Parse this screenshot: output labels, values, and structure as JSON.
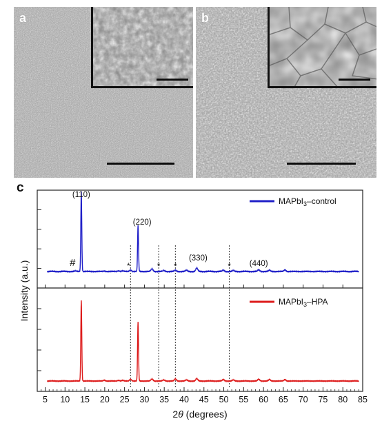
{
  "panels": {
    "a": {
      "letter": "a"
    },
    "b": {
      "letter": "b"
    },
    "c": {
      "letter": "c"
    }
  },
  "colors": {
    "control": "#1f1fc8",
    "hpa": "#dd1a1a"
  },
  "chart_data": {
    "type": "line",
    "xlabel_prefix": "2",
    "xlabel_theta": "θ",
    "xlabel_suffix": " (degrees)",
    "ylabel": "Intensity (a.u.)",
    "xlim": [
      3,
      85
    ],
    "x_ticks": [
      5,
      10,
      15,
      20,
      25,
      30,
      35,
      40,
      45,
      50,
      55,
      60,
      65,
      70,
      75,
      80,
      85
    ],
    "grid": false,
    "legend_position": "top-right",
    "series": [
      {
        "name": "MAPbI3–control",
        "legend_parts": [
          "MAPbI",
          "3",
          "–control"
        ],
        "color": "#1f1fc8",
        "baseline": 1.0,
        "peaks": [
          {
            "x": 12.6,
            "h": 0.06
          },
          {
            "x": 14.1,
            "h": 10.4
          },
          {
            "x": 19.9,
            "h": 0.05
          },
          {
            "x": 23.5,
            "h": 0.08
          },
          {
            "x": 24.5,
            "h": 0.08
          },
          {
            "x": 26.5,
            "h": 0.18
          },
          {
            "x": 28.4,
            "h": 6.0
          },
          {
            "x": 31.9,
            "h": 0.35
          },
          {
            "x": 34.9,
            "h": 0.12
          },
          {
            "x": 37.8,
            "h": 0.15
          },
          {
            "x": 40.6,
            "h": 0.15
          },
          {
            "x": 43.2,
            "h": 0.45
          },
          {
            "x": 49.9,
            "h": 0.15
          },
          {
            "x": 52.4,
            "h": 0.12
          },
          {
            "x": 58.8,
            "h": 0.2
          },
          {
            "x": 61.5,
            "h": 0.15
          },
          {
            "x": 65.4,
            "h": 0.2
          }
        ]
      },
      {
        "name": "MAPbI3–HPA",
        "legend_parts": [
          "MAPbI",
          "3",
          "–HPA"
        ],
        "color": "#dd1a1a",
        "baseline": 1.0,
        "peaks": [
          {
            "x": 14.1,
            "h": 11.7
          },
          {
            "x": 19.9,
            "h": 0.12
          },
          {
            "x": 23.5,
            "h": 0.1
          },
          {
            "x": 24.5,
            "h": 0.1
          },
          {
            "x": 26.5,
            "h": 0.25
          },
          {
            "x": 28.4,
            "h": 8.6
          },
          {
            "x": 31.9,
            "h": 0.3
          },
          {
            "x": 34.9,
            "h": 0.15
          },
          {
            "x": 37.8,
            "h": 0.3
          },
          {
            "x": 40.6,
            "h": 0.15
          },
          {
            "x": 43.2,
            "h": 0.35
          },
          {
            "x": 49.9,
            "h": 0.2
          },
          {
            "x": 52.4,
            "h": 0.15
          },
          {
            "x": 58.8,
            "h": 0.25
          },
          {
            "x": 61.5,
            "h": 0.2
          },
          {
            "x": 65.4,
            "h": 0.2
          }
        ]
      }
    ],
    "reference_lines_x": [
      26.5,
      33.6,
      37.8,
      51.4
    ],
    "annotations": [
      {
        "text": "(110)",
        "x": 14.1
      },
      {
        "text": "(220)",
        "x": 28.4
      },
      {
        "text": "(330)",
        "x": 43.2
      },
      {
        "text": "(440)",
        "x": 58.8
      },
      {
        "text": "#",
        "x": 12.6
      },
      {
        "text": "*",
        "x": 26.0
      },
      {
        "text": "*",
        "x": 33.6
      },
      {
        "text": "*",
        "x": 37.8
      },
      {
        "text": "*",
        "x": 51.4
      }
    ]
  }
}
